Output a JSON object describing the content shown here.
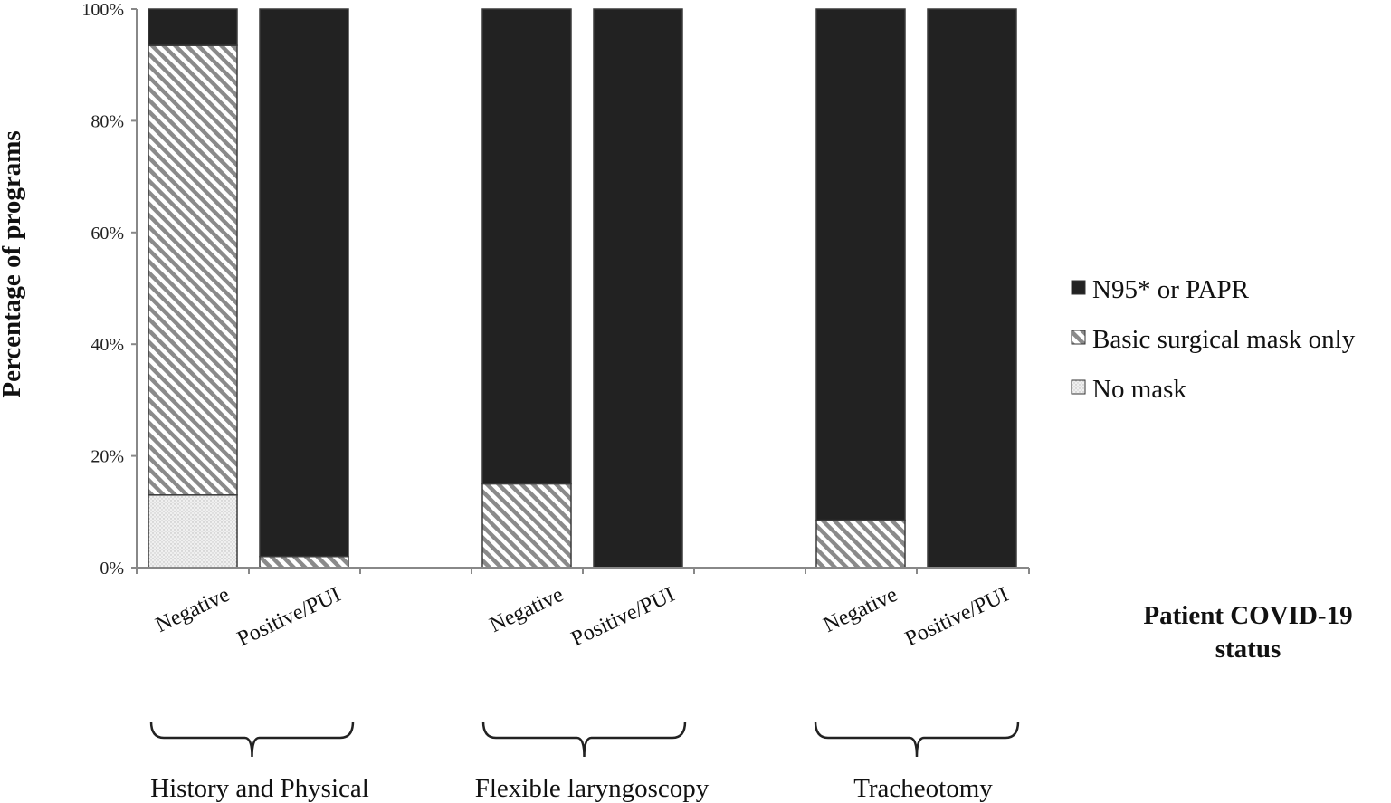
{
  "chart_data": {
    "type": "bar",
    "stacked": true,
    "ylabel": "Percentage of programs",
    "xlabel": "Patient COVID-19 status",
    "ylim": [
      0,
      100
    ],
    "yticks": [
      "0%",
      "20%",
      "40%",
      "60%",
      "80%",
      "100%"
    ],
    "ytick_values": [
      0,
      20,
      40,
      60,
      80,
      100
    ],
    "groups": [
      "History and Physical",
      "Flexible laryngoscopy",
      "Tracheotomy"
    ],
    "categories": [
      "Negative",
      "Positive/PUI",
      "Negative",
      "Positive/PUI",
      "Negative",
      "Positive/PUI"
    ],
    "category_group": [
      0,
      0,
      1,
      1,
      2,
      2
    ],
    "series": [
      {
        "name": "No mask",
        "values": [
          13,
          0,
          0,
          0,
          0,
          0
        ]
      },
      {
        "name": "Basic surgical mask only",
        "values": [
          80.5,
          2,
          15,
          0,
          8.5,
          0
        ]
      },
      {
        "name": "N95* or PAPR",
        "values": [
          6.5,
          98,
          85,
          100,
          91.5,
          100
        ]
      }
    ],
    "legend": {
      "placement": "right",
      "order": [
        2,
        1,
        0
      ]
    },
    "colors": {
      "n95": "#222222",
      "surgical_stripe": "#8a8a8a",
      "no_mask": "#eeeeee",
      "axis": "#888888"
    },
    "grid": false
  }
}
